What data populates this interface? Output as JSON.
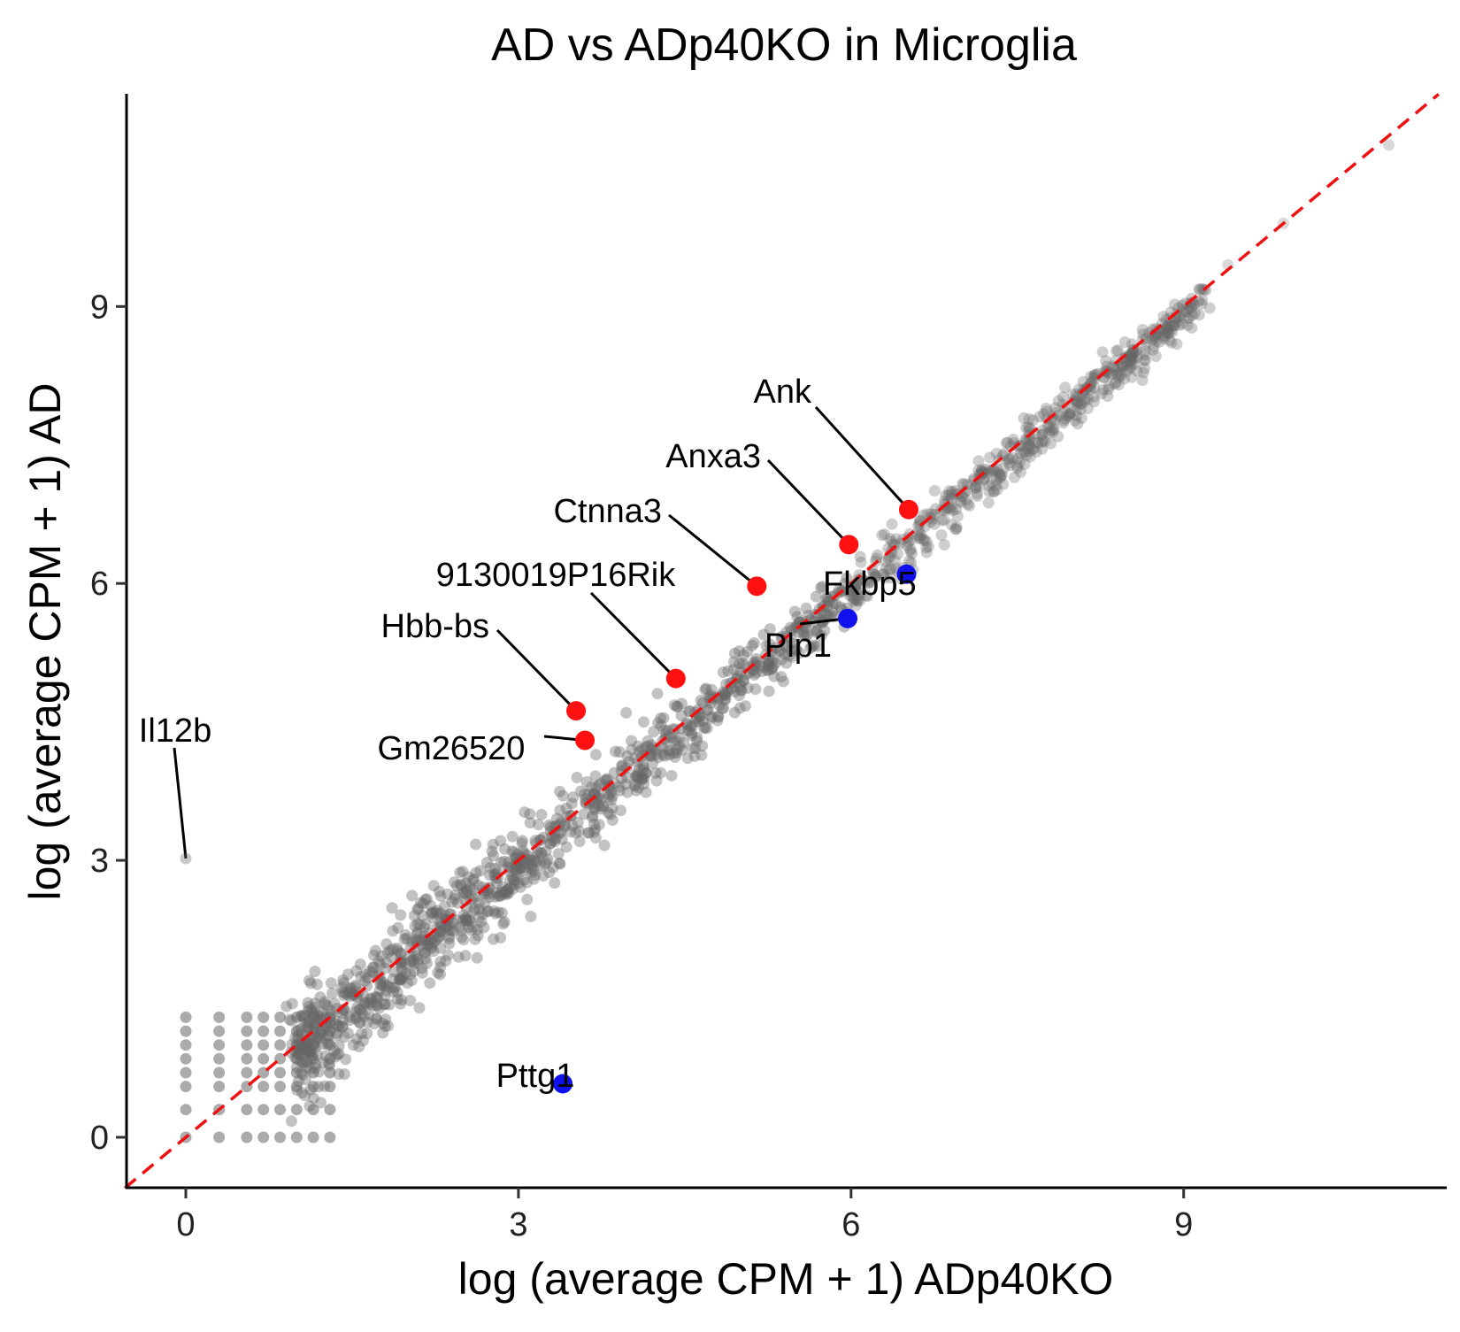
{
  "chart_data": {
    "type": "scatter",
    "title": "AD vs ADp40KO in Microglia",
    "xlabel": "log (average CPM + 1) ADp40KO",
    "ylabel": "log (average CPM + 1) AD",
    "xlim": [
      -0.55,
      11.3
    ],
    "ylim": [
      -0.45,
      11.2
    ],
    "xticks": [
      0,
      3,
      6,
      9
    ],
    "yticks": [
      0,
      3,
      6,
      9
    ],
    "grid": false,
    "legend": "none",
    "reference_line": {
      "type": "identity",
      "slope": 1,
      "intercept": 0,
      "style": "dashed",
      "color": "#ee1111"
    },
    "colors": {
      "background_points": "#666666",
      "up": "#ff1111",
      "down": "#1111ee"
    },
    "background_points": {
      "description_shape": "dense cloud along the diagonal",
      "discrete_x": [
        0,
        0.3,
        0.55,
        0.7,
        0.85,
        1.0,
        1.15,
        1.3
      ],
      "discrete_y": [
        0,
        0.3,
        0.55,
        0.7,
        0.85,
        1.0,
        1.15,
        1.3
      ],
      "max_x": 10.85,
      "max_y": 10.75
    },
    "highlighted": [
      {
        "gene": "Ank",
        "x": 6.52,
        "y": 6.8,
        "group": "up"
      },
      {
        "gene": "Anxa3",
        "x": 5.98,
        "y": 6.42,
        "group": "up"
      },
      {
        "gene": "Ctnna3",
        "x": 5.15,
        "y": 5.97,
        "group": "up"
      },
      {
        "gene": "9130019P16Rik",
        "x": 4.42,
        "y": 4.97,
        "group": "up"
      },
      {
        "gene": "Hbb-bs",
        "x": 3.52,
        "y": 4.62,
        "group": "up"
      },
      {
        "gene": "Gm26520",
        "x": 3.6,
        "y": 4.3,
        "group": "up"
      },
      {
        "gene": "Fkbp5",
        "x": 6.5,
        "y": 6.1,
        "group": "down"
      },
      {
        "gene": "Plp1",
        "x": 5.97,
        "y": 5.62,
        "group": "down"
      },
      {
        "gene": "Pttg1",
        "x": 3.4,
        "y": 0.58,
        "group": "down"
      },
      {
        "gene": "Il12b",
        "x": 0.0,
        "y": 3.02,
        "group": "background"
      }
    ]
  }
}
